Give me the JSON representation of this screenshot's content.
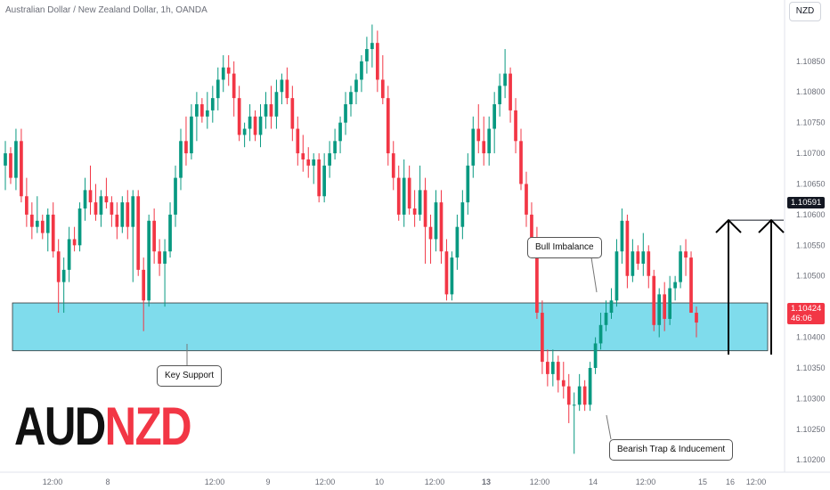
{
  "header": {
    "title": "Australian Dollar / New Zealand Dollar, 1h, OANDA",
    "currency": "NZD"
  },
  "symbol": {
    "base": "AUD",
    "quote": "NZD"
  },
  "colors": {
    "up": "#089981",
    "down": "#f23645",
    "zone_fill": "#7fdcec",
    "zone_border": "#333333",
    "price_tag_bg": "#f23645",
    "level_tag_bg": "#131722"
  },
  "annotations": {
    "key_support": "Key Support",
    "bull_imbalance": "Bull Imbalance",
    "bearish_trap": "Bearish Trap & Inducement"
  },
  "price_tags": {
    "target_level": "1.10591",
    "current_price": "1.10424",
    "countdown": "46:06"
  },
  "chart_data": {
    "type": "candlestick",
    "y_axis": {
      "range": [
        1.1018,
        1.1095
      ],
      "ticks": [
        "1.10200",
        "1.10250",
        "1.10300",
        "1.10350",
        "1.10400",
        "1.10450",
        "1.10500",
        "1.10550",
        "1.10600",
        "1.10650",
        "1.10700",
        "1.10750",
        "1.10800",
        "1.10850"
      ]
    },
    "x_axis": {
      "ticks": [
        "12:00",
        "8",
        "12:00",
        "9",
        "12:00",
        "10",
        "12:00",
        "13",
        "12:00",
        "14",
        "12:00",
        "15",
        "12:00",
        "16"
      ]
    },
    "support_zone": [
      1.10378,
      1.10456
    ],
    "target_level": 1.10591,
    "current_price": 1.10424,
    "candles": [
      {
        "o": 1.1068,
        "h": 1.1072,
        "l": 1.1064,
        "c": 1.107
      },
      {
        "o": 1.107,
        "h": 1.1071,
        "l": 1.1065,
        "c": 1.1066
      },
      {
        "o": 1.1066,
        "h": 1.1074,
        "l": 1.1064,
        "c": 1.1072
      },
      {
        "o": 1.1072,
        "h": 1.1074,
        "l": 1.1062,
        "c": 1.1063
      },
      {
        "o": 1.1063,
        "h": 1.1066,
        "l": 1.1058,
        "c": 1.106
      },
      {
        "o": 1.106,
        "h": 1.1062,
        "l": 1.1056,
        "c": 1.1058
      },
      {
        "o": 1.1058,
        "h": 1.1063,
        "l": 1.1057,
        "c": 1.1059
      },
      {
        "o": 1.1059,
        "h": 1.106,
        "l": 1.1056,
        "c": 1.1057
      },
      {
        "o": 1.1057,
        "h": 1.1061,
        "l": 1.1054,
        "c": 1.106
      },
      {
        "o": 1.106,
        "h": 1.1062,
        "l": 1.1053,
        "c": 1.1054
      },
      {
        "o": 1.1054,
        "h": 1.1056,
        "l": 1.1044,
        "c": 1.1049
      },
      {
        "o": 1.1049,
        "h": 1.1053,
        "l": 1.1044,
        "c": 1.1051
      },
      {
        "o": 1.1051,
        "h": 1.1058,
        "l": 1.1049,
        "c": 1.1056
      },
      {
        "o": 1.1056,
        "h": 1.1058,
        "l": 1.1054,
        "c": 1.1055
      },
      {
        "o": 1.1055,
        "h": 1.1062,
        "l": 1.1054,
        "c": 1.1061
      },
      {
        "o": 1.1061,
        "h": 1.1066,
        "l": 1.1059,
        "c": 1.1064
      },
      {
        "o": 1.1064,
        "h": 1.1068,
        "l": 1.106,
        "c": 1.1062
      },
      {
        "o": 1.1062,
        "h": 1.1065,
        "l": 1.1059,
        "c": 1.106
      },
      {
        "o": 1.106,
        "h": 1.1064,
        "l": 1.1058,
        "c": 1.1063
      },
      {
        "o": 1.1063,
        "h": 1.1066,
        "l": 1.1061,
        "c": 1.1062
      },
      {
        "o": 1.1062,
        "h": 1.1063,
        "l": 1.1058,
        "c": 1.106
      },
      {
        "o": 1.106,
        "h": 1.1062,
        "l": 1.1056,
        "c": 1.1058
      },
      {
        "o": 1.1058,
        "h": 1.1063,
        "l": 1.1057,
        "c": 1.1062
      },
      {
        "o": 1.1062,
        "h": 1.1064,
        "l": 1.1056,
        "c": 1.1058
      },
      {
        "o": 1.1058,
        "h": 1.1064,
        "l": 1.1049,
        "c": 1.1063
      },
      {
        "o": 1.1063,
        "h": 1.1064,
        "l": 1.105,
        "c": 1.1051
      },
      {
        "o": 1.1051,
        "h": 1.1053,
        "l": 1.1041,
        "c": 1.1046
      },
      {
        "o": 1.1046,
        "h": 1.106,
        "l": 1.1045,
        "c": 1.1059
      },
      {
        "o": 1.1059,
        "h": 1.1061,
        "l": 1.1052,
        "c": 1.1054
      },
      {
        "o": 1.1054,
        "h": 1.1056,
        "l": 1.105,
        "c": 1.1052
      },
      {
        "o": 1.1052,
        "h": 1.1056,
        "l": 1.1045,
        "c": 1.1054
      },
      {
        "o": 1.1054,
        "h": 1.1062,
        "l": 1.1053,
        "c": 1.106
      },
      {
        "o": 1.106,
        "h": 1.1068,
        "l": 1.1058,
        "c": 1.1066
      },
      {
        "o": 1.1066,
        "h": 1.1074,
        "l": 1.1064,
        "c": 1.1072
      },
      {
        "o": 1.1072,
        "h": 1.1076,
        "l": 1.1068,
        "c": 1.107
      },
      {
        "o": 1.107,
        "h": 1.1078,
        "l": 1.1069,
        "c": 1.1076
      },
      {
        "o": 1.1076,
        "h": 1.108,
        "l": 1.1072,
        "c": 1.1078
      },
      {
        "o": 1.1078,
        "h": 1.1079,
        "l": 1.1075,
        "c": 1.1076
      },
      {
        "o": 1.1076,
        "h": 1.108,
        "l": 1.1074,
        "c": 1.1077
      },
      {
        "o": 1.1077,
        "h": 1.1081,
        "l": 1.1075,
        "c": 1.1079
      },
      {
        "o": 1.1079,
        "h": 1.1084,
        "l": 1.1077,
        "c": 1.1082
      },
      {
        "o": 1.1082,
        "h": 1.1086,
        "l": 1.108,
        "c": 1.1084
      },
      {
        "o": 1.1084,
        "h": 1.1086,
        "l": 1.1081,
        "c": 1.1083
      },
      {
        "o": 1.1083,
        "h": 1.1085,
        "l": 1.1076,
        "c": 1.1079
      },
      {
        "o": 1.1079,
        "h": 1.1081,
        "l": 1.1072,
        "c": 1.1073
      },
      {
        "o": 1.1073,
        "h": 1.1075,
        "l": 1.1071,
        "c": 1.1074
      },
      {
        "o": 1.1074,
        "h": 1.1078,
        "l": 1.1072,
        "c": 1.1076
      },
      {
        "o": 1.1076,
        "h": 1.1077,
        "l": 1.1072,
        "c": 1.1073
      },
      {
        "o": 1.1073,
        "h": 1.1078,
        "l": 1.1071,
        "c": 1.1076
      },
      {
        "o": 1.1076,
        "h": 1.108,
        "l": 1.1074,
        "c": 1.1078
      },
      {
        "o": 1.1078,
        "h": 1.1081,
        "l": 1.1074,
        "c": 1.1076
      },
      {
        "o": 1.1076,
        "h": 1.1082,
        "l": 1.1074,
        "c": 1.108
      },
      {
        "o": 1.108,
        "h": 1.1083,
        "l": 1.1078,
        "c": 1.1082
      },
      {
        "o": 1.1082,
        "h": 1.1084,
        "l": 1.1078,
        "c": 1.1079
      },
      {
        "o": 1.1079,
        "h": 1.1081,
        "l": 1.1072,
        "c": 1.1074
      },
      {
        "o": 1.1074,
        "h": 1.1076,
        "l": 1.1068,
        "c": 1.107
      },
      {
        "o": 1.107,
        "h": 1.1073,
        "l": 1.1067,
        "c": 1.1069
      },
      {
        "o": 1.1069,
        "h": 1.1071,
        "l": 1.1066,
        "c": 1.1068
      },
      {
        "o": 1.1068,
        "h": 1.107,
        "l": 1.1065,
        "c": 1.1069
      },
      {
        "o": 1.1069,
        "h": 1.107,
        "l": 1.1062,
        "c": 1.1063
      },
      {
        "o": 1.1063,
        "h": 1.107,
        "l": 1.1062,
        "c": 1.1068
      },
      {
        "o": 1.1068,
        "h": 1.1072,
        "l": 1.1066,
        "c": 1.107
      },
      {
        "o": 1.107,
        "h": 1.1074,
        "l": 1.1069,
        "c": 1.1072
      },
      {
        "o": 1.1072,
        "h": 1.1076,
        "l": 1.107,
        "c": 1.1075
      },
      {
        "o": 1.1075,
        "h": 1.108,
        "l": 1.1073,
        "c": 1.1078
      },
      {
        "o": 1.1078,
        "h": 1.1081,
        "l": 1.1076,
        "c": 1.108
      },
      {
        "o": 1.108,
        "h": 1.1083,
        "l": 1.1078,
        "c": 1.1082
      },
      {
        "o": 1.1082,
        "h": 1.1086,
        "l": 1.108,
        "c": 1.1085
      },
      {
        "o": 1.1085,
        "h": 1.1089,
        "l": 1.1083,
        "c": 1.1087
      },
      {
        "o": 1.1087,
        "h": 1.1091,
        "l": 1.1084,
        "c": 1.1088
      },
      {
        "o": 1.1088,
        "h": 1.109,
        "l": 1.108,
        "c": 1.1082
      },
      {
        "o": 1.1082,
        "h": 1.1086,
        "l": 1.1078,
        "c": 1.1079
      },
      {
        "o": 1.1079,
        "h": 1.1081,
        "l": 1.1068,
        "c": 1.107
      },
      {
        "o": 1.107,
        "h": 1.1072,
        "l": 1.1064,
        "c": 1.1066
      },
      {
        "o": 1.1066,
        "h": 1.1068,
        "l": 1.1059,
        "c": 1.106
      },
      {
        "o": 1.106,
        "h": 1.1069,
        "l": 1.1058,
        "c": 1.1066
      },
      {
        "o": 1.1066,
        "h": 1.1068,
        "l": 1.106,
        "c": 1.1061
      },
      {
        "o": 1.1061,
        "h": 1.1064,
        "l": 1.1058,
        "c": 1.106
      },
      {
        "o": 1.106,
        "h": 1.1068,
        "l": 1.1059,
        "c": 1.1064
      },
      {
        "o": 1.1064,
        "h": 1.1066,
        "l": 1.1052,
        "c": 1.1058
      },
      {
        "o": 1.1058,
        "h": 1.106,
        "l": 1.1052,
        "c": 1.1056
      },
      {
        "o": 1.1056,
        "h": 1.1064,
        "l": 1.1054,
        "c": 1.1062
      },
      {
        "o": 1.1062,
        "h": 1.1064,
        "l": 1.1052,
        "c": 1.1054
      },
      {
        "o": 1.1054,
        "h": 1.1056,
        "l": 1.1046,
        "c": 1.1047
      },
      {
        "o": 1.1047,
        "h": 1.1054,
        "l": 1.1046,
        "c": 1.1053
      },
      {
        "o": 1.1053,
        "h": 1.106,
        "l": 1.1051,
        "c": 1.1058
      },
      {
        "o": 1.1058,
        "h": 1.1064,
        "l": 1.1056,
        "c": 1.1062
      },
      {
        "o": 1.1062,
        "h": 1.107,
        "l": 1.106,
        "c": 1.1068
      },
      {
        "o": 1.1068,
        "h": 1.1076,
        "l": 1.1066,
        "c": 1.1074
      },
      {
        "o": 1.1074,
        "h": 1.1078,
        "l": 1.107,
        "c": 1.1072
      },
      {
        "o": 1.1072,
        "h": 1.1076,
        "l": 1.1068,
        "c": 1.107
      },
      {
        "o": 1.107,
        "h": 1.1076,
        "l": 1.1068,
        "c": 1.1074
      },
      {
        "o": 1.1074,
        "h": 1.108,
        "l": 1.107,
        "c": 1.1078
      },
      {
        "o": 1.1078,
        "h": 1.1083,
        "l": 1.1076,
        "c": 1.1081
      },
      {
        "o": 1.1081,
        "h": 1.1087,
        "l": 1.1079,
        "c": 1.1083
      },
      {
        "o": 1.1083,
        "h": 1.1084,
        "l": 1.1075,
        "c": 1.1077
      },
      {
        "o": 1.1077,
        "h": 1.1079,
        "l": 1.107,
        "c": 1.1072
      },
      {
        "o": 1.1072,
        "h": 1.1074,
        "l": 1.1064,
        "c": 1.1065
      },
      {
        "o": 1.1065,
        "h": 1.1067,
        "l": 1.1058,
        "c": 1.106
      },
      {
        "o": 1.106,
        "h": 1.1062,
        "l": 1.1054,
        "c": 1.1056
      },
      {
        "o": 1.1056,
        "h": 1.1058,
        "l": 1.1043,
        "c": 1.1044
      },
      {
        "o": 1.1044,
        "h": 1.1046,
        "l": 1.1034,
        "c": 1.1036
      },
      {
        "o": 1.1036,
        "h": 1.1038,
        "l": 1.1032,
        "c": 1.1034
      },
      {
        "o": 1.1034,
        "h": 1.1038,
        "l": 1.1032,
        "c": 1.1036
      },
      {
        "o": 1.1036,
        "h": 1.1037,
        "l": 1.1031,
        "c": 1.1033
      },
      {
        "o": 1.1033,
        "h": 1.1036,
        "l": 1.103,
        "c": 1.1032
      },
      {
        "o": 1.1032,
        "h": 1.1034,
        "l": 1.1026,
        "c": 1.1029
      },
      {
        "o": 1.1029,
        "h": 1.1031,
        "l": 1.1021,
        "c": 1.1029
      },
      {
        "o": 1.1029,
        "h": 1.1034,
        "l": 1.1028,
        "c": 1.1032
      },
      {
        "o": 1.1032,
        "h": 1.1033,
        "l": 1.1028,
        "c": 1.1029
      },
      {
        "o": 1.1029,
        "h": 1.1036,
        "l": 1.1028,
        "c": 1.1035
      },
      {
        "o": 1.1035,
        "h": 1.104,
        "l": 1.1034,
        "c": 1.1039
      },
      {
        "o": 1.1039,
        "h": 1.1044,
        "l": 1.1038,
        "c": 1.1042
      },
      {
        "o": 1.1042,
        "h": 1.1046,
        "l": 1.1041,
        "c": 1.1044
      },
      {
        "o": 1.1044,
        "h": 1.1048,
        "l": 1.1043,
        "c": 1.1046
      },
      {
        "o": 1.1046,
        "h": 1.1056,
        "l": 1.1045,
        "c": 1.1054
      },
      {
        "o": 1.1054,
        "h": 1.1061,
        "l": 1.1052,
        "c": 1.1059
      },
      {
        "o": 1.1059,
        "h": 1.106,
        "l": 1.1048,
        "c": 1.105
      },
      {
        "o": 1.105,
        "h": 1.1056,
        "l": 1.1049,
        "c": 1.1054
      },
      {
        "o": 1.1054,
        "h": 1.1055,
        "l": 1.1051,
        "c": 1.1052
      },
      {
        "o": 1.1052,
        "h": 1.1057,
        "l": 1.105,
        "c": 1.1054
      },
      {
        "o": 1.1054,
        "h": 1.1055,
        "l": 1.1048,
        "c": 1.105
      },
      {
        "o": 1.105,
        "h": 1.1051,
        "l": 1.1041,
        "c": 1.1042
      },
      {
        "o": 1.1042,
        "h": 1.1048,
        "l": 1.104,
        "c": 1.1047
      },
      {
        "o": 1.1047,
        "h": 1.1049,
        "l": 1.1041,
        "c": 1.1043
      },
      {
        "o": 1.1043,
        "h": 1.105,
        "l": 1.1042,
        "c": 1.1048
      },
      {
        "o": 1.1048,
        "h": 1.105,
        "l": 1.1046,
        "c": 1.1049
      },
      {
        "o": 1.1049,
        "h": 1.1055,
        "l": 1.1048,
        "c": 1.1054
      },
      {
        "o": 1.1054,
        "h": 1.1056,
        "l": 1.105,
        "c": 1.1053
      },
      {
        "o": 1.1053,
        "h": 1.1054,
        "l": 1.1044,
        "c": 1.1044
      },
      {
        "o": 1.1044,
        "h": 1.1045,
        "l": 1.104,
        "c": 1.10424
      }
    ]
  }
}
